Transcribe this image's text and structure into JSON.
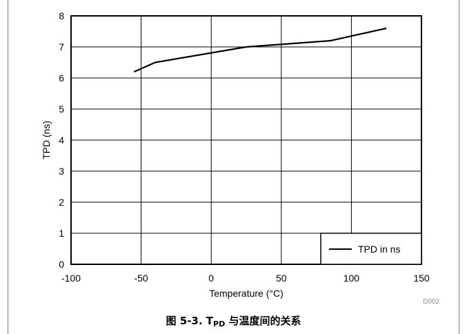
{
  "chart_data": {
    "type": "line",
    "id_label": "D002",
    "xlabel": "Temperature (°C)",
    "ylabel": "TPD (ns)",
    "xlim": [
      -100,
      150
    ],
    "ylim": [
      0,
      8
    ],
    "xticks": [
      -100,
      -50,
      0,
      50,
      100,
      150
    ],
    "yticks": [
      0,
      1,
      2,
      3,
      4,
      5,
      6,
      7,
      8
    ],
    "grid": true,
    "legend_position": "bottom-right",
    "series": [
      {
        "name": "TPD in ns",
        "color": "#000000",
        "x": [
          -55,
          -40,
          25,
          85,
          125
        ],
        "y": [
          6.2,
          6.5,
          7.0,
          7.2,
          7.6
        ]
      }
    ]
  },
  "caption": {
    "prefix": "图 5-3. T",
    "subscript": "PD",
    "suffix": " 与温度间的关系"
  },
  "frame_color": "#000000",
  "border_color": "#808080"
}
